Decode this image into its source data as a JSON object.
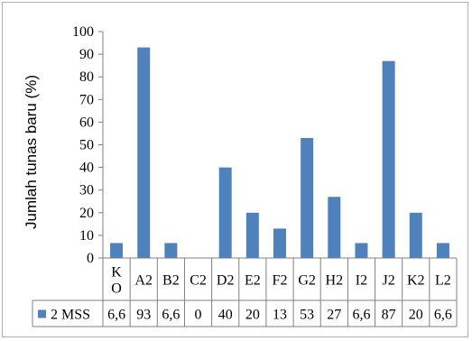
{
  "chart_data": {
    "type": "bar",
    "title": "",
    "xlabel": "",
    "ylabel": "Jumlah  tunas baru (%)",
    "ylim": [
      0,
      100
    ],
    "yticks": [
      0,
      10,
      20,
      30,
      40,
      50,
      60,
      70,
      80,
      90,
      100
    ],
    "grid": false,
    "legend": "bottom-left (in data table)",
    "categories": [
      "K\nO",
      "A2",
      "B2",
      "C2",
      "D2",
      "E2",
      "F2",
      "G2",
      "H2",
      "I2",
      "J2",
      "K2",
      "L2"
    ],
    "series": [
      {
        "name": "2 MSS",
        "color": "#4f81bd",
        "values": [
          6.6,
          93,
          6.6,
          0,
          40,
          20,
          13,
          53,
          27,
          6.6,
          87,
          20,
          6.6
        ],
        "value_labels": [
          "6,6",
          "93",
          "6,6",
          "0",
          "40",
          "20",
          "13",
          "53",
          "27",
          "6,6",
          "87",
          "20",
          "6,6"
        ]
      }
    ]
  }
}
